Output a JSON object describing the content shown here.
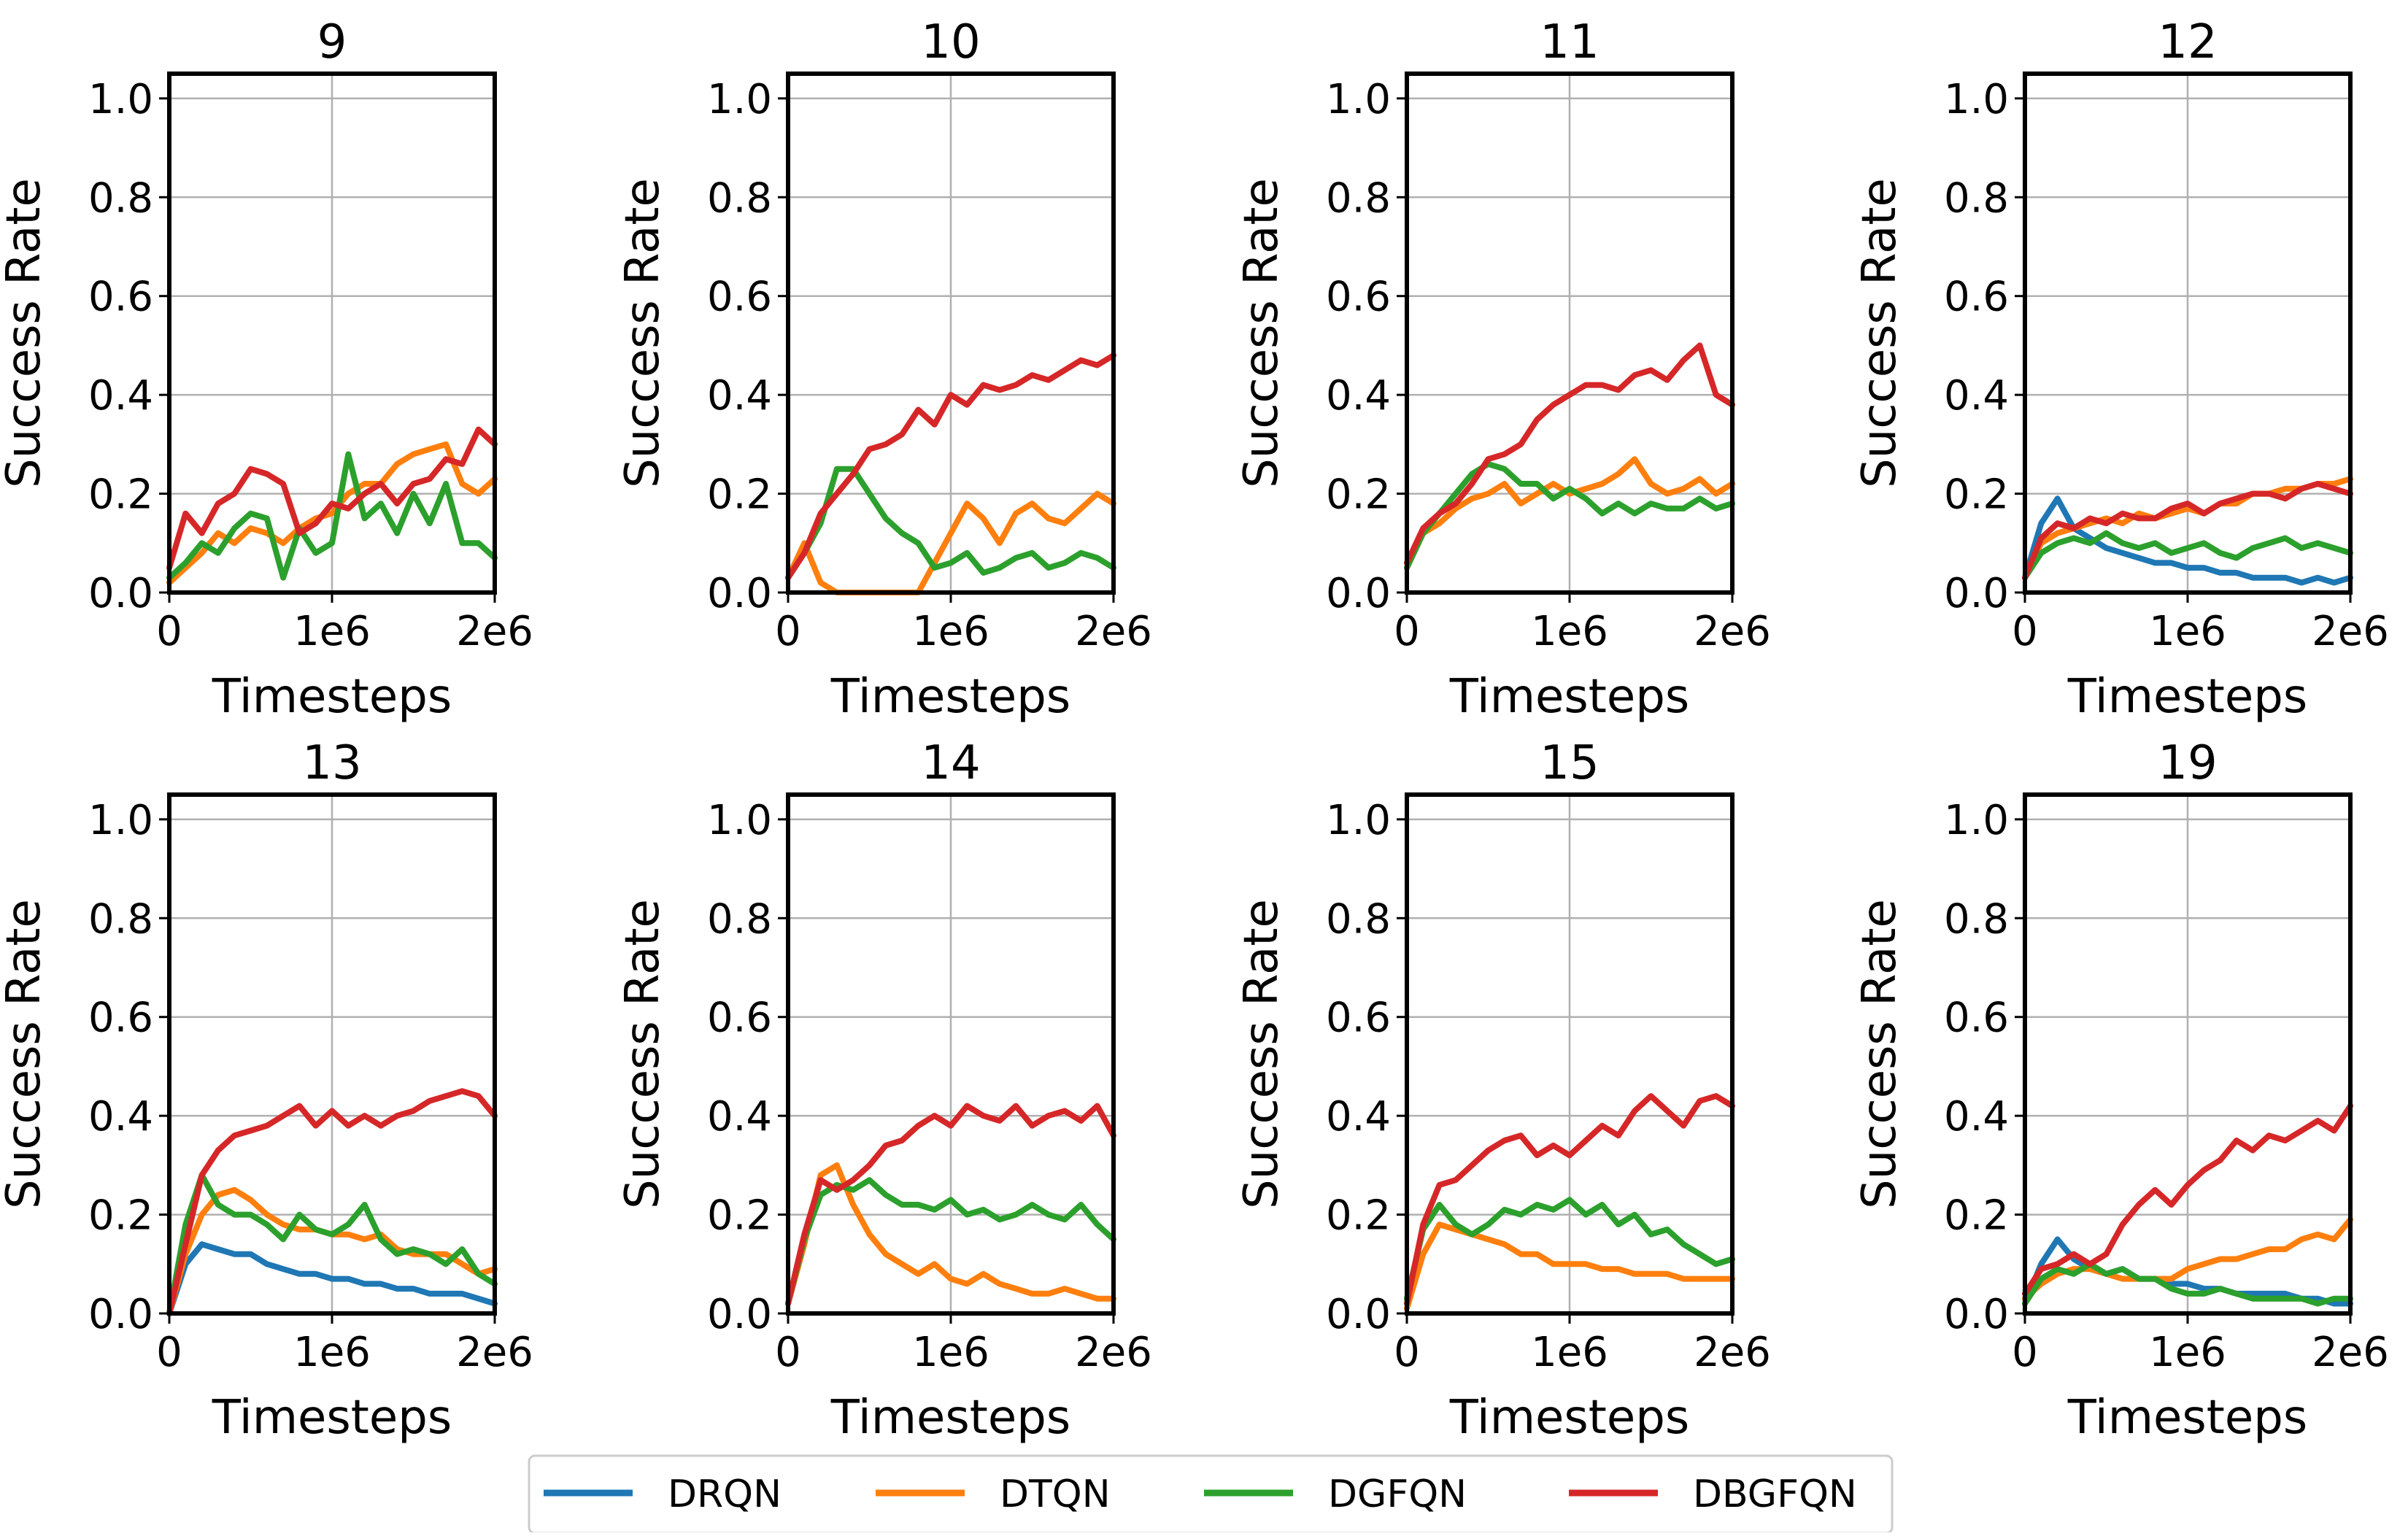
{
  "colors": {
    "DRQN": "#1f77b4",
    "DTQN": "#ff7f0e",
    "DGFQN": "#2ca02c",
    "DBGFQN": "#d62728",
    "grid": "#b0b0b0"
  },
  "chart_data": {
    "type": "line",
    "xlabel": "Timesteps",
    "ylabel": "Success Rate",
    "xlim": [
      0,
      2000000
    ],
    "ylim": [
      0.0,
      1.05
    ],
    "xticks": [
      0,
      1000000,
      2000000
    ],
    "xtick_labels": [
      "0",
      "1e6",
      "2e6"
    ],
    "yticks": [
      0.0,
      0.2,
      0.4,
      0.6,
      0.8,
      1.0
    ],
    "ytick_labels": [
      "0.0",
      "0.2",
      "0.4",
      "0.6",
      "0.8",
      "1.0"
    ],
    "grid": true,
    "legend": {
      "placement": "bottom-center",
      "entries": [
        "DRQN",
        "DTQN",
        "DGFQN",
        "DBGFQN"
      ]
    },
    "x": [
      0,
      100000,
      200000,
      300000,
      400000,
      500000,
      600000,
      700000,
      800000,
      900000,
      1000000,
      1100000,
      1200000,
      1300000,
      1400000,
      1500000,
      1600000,
      1700000,
      1800000,
      1900000,
      2000000
    ],
    "panels": [
      {
        "title": "9",
        "series": [
          {
            "name": "DTQN",
            "values": [
              0.02,
              0.05,
              0.08,
              0.12,
              0.1,
              0.13,
              0.12,
              0.1,
              0.13,
              0.15,
              0.16,
              0.2,
              0.22,
              0.22,
              0.26,
              0.28,
              0.29,
              0.3,
              0.22,
              0.2,
              0.23
            ]
          },
          {
            "name": "DGFQN",
            "values": [
              0.03,
              0.06,
              0.1,
              0.08,
              0.13,
              0.16,
              0.15,
              0.03,
              0.13,
              0.08,
              0.1,
              0.28,
              0.15,
              0.18,
              0.12,
              0.2,
              0.14,
              0.22,
              0.1,
              0.1,
              0.07
            ]
          },
          {
            "name": "DBGFQN",
            "values": [
              0.05,
              0.16,
              0.12,
              0.18,
              0.2,
              0.25,
              0.24,
              0.22,
              0.12,
              0.14,
              0.18,
              0.17,
              0.2,
              0.22,
              0.18,
              0.22,
              0.23,
              0.27,
              0.26,
              0.33,
              0.3
            ]
          }
        ]
      },
      {
        "title": "10",
        "series": [
          {
            "name": "DTQN",
            "values": [
              0.03,
              0.1,
              0.02,
              0.0,
              0.0,
              0.0,
              0.0,
              0.0,
              0.0,
              0.06,
              0.12,
              0.18,
              0.15,
              0.1,
              0.16,
              0.18,
              0.15,
              0.14,
              0.17,
              0.2,
              0.18
            ]
          },
          {
            "name": "DGFQN",
            "values": [
              0.03,
              0.08,
              0.14,
              0.25,
              0.25,
              0.2,
              0.15,
              0.12,
              0.1,
              0.05,
              0.06,
              0.08,
              0.04,
              0.05,
              0.07,
              0.08,
              0.05,
              0.06,
              0.08,
              0.07,
              0.05
            ]
          },
          {
            "name": "DBGFQN",
            "values": [
              0.03,
              0.08,
              0.16,
              0.2,
              0.24,
              0.29,
              0.3,
              0.32,
              0.37,
              0.34,
              0.4,
              0.38,
              0.42,
              0.41,
              0.42,
              0.44,
              0.43,
              0.45,
              0.47,
              0.46,
              0.48
            ]
          }
        ]
      },
      {
        "title": "11",
        "series": [
          {
            "name": "DTQN",
            "values": [
              0.05,
              0.12,
              0.14,
              0.17,
              0.19,
              0.2,
              0.22,
              0.18,
              0.2,
              0.22,
              0.2,
              0.21,
              0.22,
              0.24,
              0.27,
              0.22,
              0.2,
              0.21,
              0.23,
              0.2,
              0.22
            ]
          },
          {
            "name": "DGFQN",
            "values": [
              0.05,
              0.12,
              0.16,
              0.2,
              0.24,
              0.26,
              0.25,
              0.22,
              0.22,
              0.19,
              0.21,
              0.19,
              0.16,
              0.18,
              0.16,
              0.18,
              0.17,
              0.17,
              0.19,
              0.17,
              0.18
            ]
          },
          {
            "name": "DBGFQN",
            "values": [
              0.06,
              0.13,
              0.16,
              0.18,
              0.22,
              0.27,
              0.28,
              0.3,
              0.35,
              0.38,
              0.4,
              0.42,
              0.42,
              0.41,
              0.44,
              0.45,
              0.43,
              0.47,
              0.5,
              0.4,
              0.38
            ]
          }
        ]
      },
      {
        "title": "12",
        "series": [
          {
            "name": "DRQN",
            "values": [
              0.03,
              0.14,
              0.19,
              0.13,
              0.11,
              0.09,
              0.08,
              0.07,
              0.06,
              0.06,
              0.05,
              0.05,
              0.04,
              0.04,
              0.03,
              0.03,
              0.03,
              0.02,
              0.03,
              0.02,
              0.03
            ]
          },
          {
            "name": "DTQN",
            "values": [
              0.03,
              0.1,
              0.12,
              0.13,
              0.14,
              0.15,
              0.14,
              0.16,
              0.15,
              0.16,
              0.17,
              0.16,
              0.18,
              0.18,
              0.2,
              0.2,
              0.21,
              0.21,
              0.22,
              0.22,
              0.23
            ]
          },
          {
            "name": "DGFQN",
            "values": [
              0.03,
              0.08,
              0.1,
              0.11,
              0.1,
              0.12,
              0.1,
              0.09,
              0.1,
              0.08,
              0.09,
              0.1,
              0.08,
              0.07,
              0.09,
              0.1,
              0.11,
              0.09,
              0.1,
              0.09,
              0.08
            ]
          },
          {
            "name": "DBGFQN",
            "values": [
              0.03,
              0.11,
              0.14,
              0.13,
              0.15,
              0.14,
              0.16,
              0.15,
              0.15,
              0.17,
              0.18,
              0.16,
              0.18,
              0.19,
              0.2,
              0.2,
              0.19,
              0.21,
              0.22,
              0.21,
              0.2
            ]
          }
        ]
      },
      {
        "title": "13",
        "series": [
          {
            "name": "DRQN",
            "values": [
              0.0,
              0.1,
              0.14,
              0.13,
              0.12,
              0.12,
              0.1,
              0.09,
              0.08,
              0.08,
              0.07,
              0.07,
              0.06,
              0.06,
              0.05,
              0.05,
              0.04,
              0.04,
              0.04,
              0.03,
              0.02
            ]
          },
          {
            "name": "DTQN",
            "values": [
              0.0,
              0.12,
              0.2,
              0.24,
              0.25,
              0.23,
              0.2,
              0.18,
              0.17,
              0.17,
              0.16,
              0.16,
              0.15,
              0.16,
              0.13,
              0.12,
              0.12,
              0.12,
              0.1,
              0.08,
              0.09
            ]
          },
          {
            "name": "DGFQN",
            "values": [
              0.0,
              0.18,
              0.28,
              0.22,
              0.2,
              0.2,
              0.18,
              0.15,
              0.2,
              0.17,
              0.16,
              0.18,
              0.22,
              0.15,
              0.12,
              0.13,
              0.12,
              0.1,
              0.13,
              0.08,
              0.06
            ]
          },
          {
            "name": "DBGFQN",
            "values": [
              0.0,
              0.14,
              0.28,
              0.33,
              0.36,
              0.37,
              0.38,
              0.4,
              0.42,
              0.38,
              0.41,
              0.38,
              0.4,
              0.38,
              0.4,
              0.41,
              0.43,
              0.44,
              0.45,
              0.44,
              0.4
            ]
          }
        ]
      },
      {
        "title": "14",
        "series": [
          {
            "name": "DTQN",
            "values": [
              0.02,
              0.14,
              0.28,
              0.3,
              0.22,
              0.16,
              0.12,
              0.1,
              0.08,
              0.1,
              0.07,
              0.06,
              0.08,
              0.06,
              0.05,
              0.04,
              0.04,
              0.05,
              0.04,
              0.03,
              0.03
            ]
          },
          {
            "name": "DGFQN",
            "values": [
              0.02,
              0.15,
              0.24,
              0.26,
              0.25,
              0.27,
              0.24,
              0.22,
              0.22,
              0.21,
              0.23,
              0.2,
              0.21,
              0.19,
              0.2,
              0.22,
              0.2,
              0.19,
              0.22,
              0.18,
              0.15
            ]
          },
          {
            "name": "DBGFQN",
            "values": [
              0.02,
              0.16,
              0.27,
              0.25,
              0.27,
              0.3,
              0.34,
              0.35,
              0.38,
              0.4,
              0.38,
              0.42,
              0.4,
              0.39,
              0.42,
              0.38,
              0.4,
              0.41,
              0.39,
              0.42,
              0.36
            ]
          }
        ]
      },
      {
        "title": "15",
        "series": [
          {
            "name": "DTQN",
            "values": [
              0.01,
              0.12,
              0.18,
              0.17,
              0.16,
              0.15,
              0.14,
              0.12,
              0.12,
              0.1,
              0.1,
              0.1,
              0.09,
              0.09,
              0.08,
              0.08,
              0.08,
              0.07,
              0.07,
              0.07,
              0.07
            ]
          },
          {
            "name": "DGFQN",
            "values": [
              0.03,
              0.17,
              0.22,
              0.18,
              0.16,
              0.18,
              0.21,
              0.2,
              0.22,
              0.21,
              0.23,
              0.2,
              0.22,
              0.18,
              0.2,
              0.16,
              0.17,
              0.14,
              0.12,
              0.1,
              0.11
            ]
          },
          {
            "name": "DBGFQN",
            "values": [
              0.02,
              0.18,
              0.26,
              0.27,
              0.3,
              0.33,
              0.35,
              0.36,
              0.32,
              0.34,
              0.32,
              0.35,
              0.38,
              0.36,
              0.41,
              0.44,
              0.41,
              0.38,
              0.43,
              0.44,
              0.42
            ]
          }
        ]
      },
      {
        "title": "19",
        "series": [
          {
            "name": "DRQN",
            "values": [
              0.02,
              0.1,
              0.15,
              0.11,
              0.09,
              0.08,
              0.09,
              0.07,
              0.07,
              0.06,
              0.06,
              0.05,
              0.05,
              0.04,
              0.04,
              0.04,
              0.04,
              0.03,
              0.03,
              0.02,
              0.02
            ]
          },
          {
            "name": "DTQN",
            "values": [
              0.03,
              0.06,
              0.08,
              0.09,
              0.09,
              0.08,
              0.07,
              0.07,
              0.07,
              0.07,
              0.09,
              0.1,
              0.11,
              0.11,
              0.12,
              0.13,
              0.13,
              0.15,
              0.16,
              0.15,
              0.19
            ]
          },
          {
            "name": "DGFQN",
            "values": [
              0.02,
              0.07,
              0.09,
              0.08,
              0.1,
              0.08,
              0.09,
              0.07,
              0.07,
              0.05,
              0.04,
              0.04,
              0.05,
              0.04,
              0.03,
              0.03,
              0.03,
              0.03,
              0.02,
              0.03,
              0.03
            ]
          },
          {
            "name": "DBGFQN",
            "values": [
              0.04,
              0.09,
              0.1,
              0.12,
              0.1,
              0.12,
              0.18,
              0.22,
              0.25,
              0.22,
              0.26,
              0.29,
              0.31,
              0.35,
              0.33,
              0.36,
              0.35,
              0.37,
              0.39,
              0.37,
              0.42
            ]
          }
        ]
      }
    ]
  }
}
